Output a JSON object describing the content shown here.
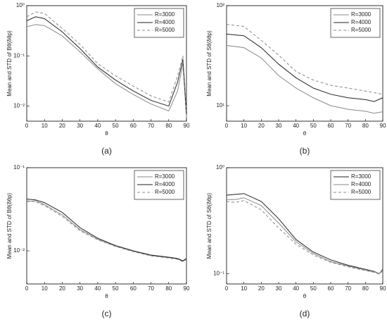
{
  "chart_data": [
    {
      "type": "line",
      "panel": "(a)",
      "xlabel": "θ",
      "ylabel": "Mean and STD of Bθ(δθp)",
      "ylog": true,
      "legend": "upper right",
      "xlim": [
        0,
        90
      ],
      "xticks": [
        0,
        10,
        20,
        30,
        40,
        50,
        60,
        70,
        80,
        90
      ],
      "ylim": [
        0.005,
        1
      ],
      "yticks": [
        {
          "value": 0.01,
          "label": "10⁻²"
        },
        {
          "value": 0.1,
          "label": "10⁻¹"
        },
        {
          "value": 1,
          "label": "10⁰"
        }
      ],
      "x": [
        0,
        5,
        10,
        20,
        30,
        40,
        50,
        60,
        70,
        80,
        85,
        88,
        90
      ],
      "series": [
        {
          "name": "R=3000",
          "color": "#888888",
          "dash": "none",
          "values": [
            0.38,
            0.42,
            0.4,
            0.25,
            0.12,
            0.055,
            0.028,
            0.017,
            0.011,
            0.008,
            0.02,
            0.07,
            0.006
          ]
        },
        {
          "name": "R=4000",
          "color": "#222222",
          "dash": "none",
          "values": [
            0.5,
            0.6,
            0.55,
            0.3,
            0.14,
            0.06,
            0.033,
            0.02,
            0.013,
            0.01,
            0.03,
            0.085,
            0.007
          ]
        },
        {
          "name": "R=5000",
          "color": "#888888",
          "dash": "4,3",
          "values": [
            0.6,
            0.75,
            0.7,
            0.35,
            0.17,
            0.07,
            0.04,
            0.025,
            0.016,
            0.012,
            0.04,
            0.1,
            0.008
          ]
        }
      ]
    },
    {
      "type": "line",
      "panel": "(b)",
      "xlabel": "θ",
      "ylabel": "Mean and STD of Sθ(δθp)",
      "ylog": true,
      "legend": "upper right",
      "xlim": [
        0,
        90
      ],
      "xticks": [
        0,
        10,
        20,
        30,
        40,
        50,
        60,
        70,
        80,
        90
      ],
      "ylim": [
        7,
        100
      ],
      "yticks": [
        {
          "value": 10,
          "label": "10¹"
        },
        {
          "value": 100,
          "label": "10²"
        }
      ],
      "x": [
        0,
        10,
        20,
        30,
        40,
        50,
        60,
        70,
        80,
        85,
        90
      ],
      "series": [
        {
          "name": "R=3000",
          "color": "#888888",
          "dash": "none",
          "values": [
            40,
            38,
            30,
            20,
            15,
            12,
            10,
            9.2,
            8.8,
            8.4,
            8.7
          ]
        },
        {
          "name": "R=4000",
          "color": "#222222",
          "dash": "none",
          "values": [
            52,
            50,
            38,
            26,
            19,
            15,
            13,
            12,
            11.5,
            11,
            12
          ]
        },
        {
          "name": "R=5000",
          "color": "#888888",
          "dash": "4,3",
          "values": [
            65,
            62,
            45,
            32,
            22,
            18,
            16,
            15,
            14,
            13.5,
            13
          ]
        }
      ]
    },
    {
      "type": "line",
      "panel": "(c)",
      "xlabel": "θ",
      "ylabel": "Mean and STD of Bθ(δθp)",
      "ylog": true,
      "legend": "upper right",
      "xlim": [
        0,
        90
      ],
      "xticks": [
        0,
        10,
        20,
        30,
        40,
        50,
        60,
        70,
        80,
        90
      ],
      "ylim": [
        0.004,
        0.1
      ],
      "yticks": [
        {
          "value": 0.01,
          "label": "10⁻²"
        },
        {
          "value": 0.1,
          "label": "10⁻¹"
        }
      ],
      "x": [
        0,
        5,
        10,
        20,
        30,
        40,
        50,
        60,
        70,
        80,
        85,
        88,
        90
      ],
      "series": [
        {
          "name": "R=3000",
          "color": "#888888",
          "dash": "none",
          "values": [
            0.039,
            0.04,
            0.036,
            0.027,
            0.018,
            0.0138,
            0.0114,
            0.0099,
            0.0088,
            0.0083,
            0.008,
            0.0075,
            0.008
          ]
        },
        {
          "name": "R=4000",
          "color": "#222222",
          "dash": "none",
          "values": [
            0.042,
            0.041,
            0.038,
            0.029,
            0.019,
            0.0142,
            0.0116,
            0.01,
            0.0089,
            0.0084,
            0.0081,
            0.0076,
            0.0081
          ]
        },
        {
          "name": "R=5000",
          "color": "#888888",
          "dash": "4,3",
          "values": [
            0.04,
            0.039,
            0.035,
            0.026,
            0.0175,
            0.0136,
            0.0113,
            0.0098,
            0.0087,
            0.0082,
            0.0079,
            0.0074,
            0.0079
          ]
        }
      ]
    },
    {
      "type": "line",
      "panel": "(d)",
      "xlabel": "θ",
      "ylabel": "Mean and STD of Sθ(δθp)",
      "ylog": true,
      "legend": "upper right",
      "xlim": [
        0,
        90
      ],
      "xticks": [
        0,
        10,
        20,
        30,
        40,
        50,
        60,
        70,
        80,
        90
      ],
      "ylim": [
        0.08,
        1
      ],
      "yticks": [
        {
          "value": 0.1,
          "label": "10⁻¹"
        },
        {
          "value": 1,
          "label": "10⁰"
        }
      ],
      "x": [
        0,
        5,
        10,
        20,
        30,
        40,
        50,
        60,
        70,
        80,
        85,
        88,
        90
      ],
      "series": [
        {
          "name": "R=3000",
          "color": "#222222",
          "dash": "none",
          "values": [
            0.55,
            0.56,
            0.57,
            0.48,
            0.33,
            0.21,
            0.16,
            0.135,
            0.12,
            0.11,
            0.105,
            0.1,
            0.11
          ]
        },
        {
          "name": "R=4000",
          "color": "#888888",
          "dash": "none",
          "values": [
            0.5,
            0.5,
            0.52,
            0.44,
            0.3,
            0.2,
            0.155,
            0.13,
            0.118,
            0.108,
            0.104,
            0.1,
            0.108
          ]
        },
        {
          "name": "R=5000",
          "color": "#888888",
          "dash": "4,3",
          "values": [
            0.48,
            0.47,
            0.49,
            0.4,
            0.27,
            0.19,
            0.15,
            0.128,
            0.116,
            0.107,
            0.103,
            0.099,
            0.107
          ]
        }
      ]
    }
  ]
}
